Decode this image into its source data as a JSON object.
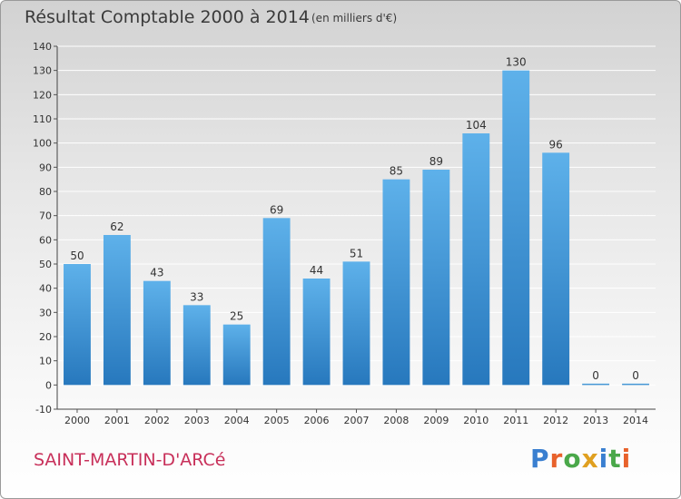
{
  "header": {
    "title": "Résultat Comptable 2000 à 2014",
    "subtitle": "(en milliers d'€)"
  },
  "footer": {
    "commune": "SAINT-MARTIN-D'ARCé",
    "brand": "Proxiti",
    "brand_letters": [
      "P",
      "r",
      "o",
      "x",
      "i",
      "t",
      "i"
    ],
    "brand_colors": [
      "#3a7fd0",
      "#e8622c",
      "#4aa84a",
      "#e0a020",
      "#3a7fd0",
      "#4aa84a",
      "#e8622c"
    ]
  },
  "colors": {
    "bar_light": "#5eb1ea",
    "bar_dark": "#2778bd",
    "grid": "#ffffff",
    "commune": "#c8305a"
  },
  "chart_data": {
    "type": "bar",
    "title": "Résultat Comptable 2000 à 2014",
    "subtitle": "(en milliers d'€)",
    "categories": [
      "2000",
      "2001",
      "2002",
      "2003",
      "2004",
      "2005",
      "2006",
      "2007",
      "2008",
      "2009",
      "2010",
      "2011",
      "2012",
      "2013",
      "2014"
    ],
    "values": [
      50,
      62,
      43,
      33,
      25,
      69,
      44,
      51,
      85,
      89,
      104,
      130,
      96,
      0,
      0
    ],
    "ylim": [
      -10,
      140
    ],
    "yticks": [
      -10,
      0,
      10,
      20,
      30,
      40,
      50,
      60,
      70,
      80,
      90,
      100,
      110,
      120,
      130,
      140
    ],
    "grid": true,
    "data_labels": true
  }
}
